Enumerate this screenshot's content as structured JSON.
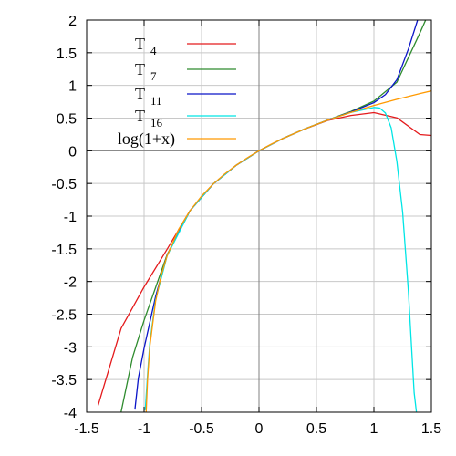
{
  "chart_data": {
    "type": "line",
    "title": "",
    "xlabel": "",
    "ylabel": "",
    "xlim": [
      -1.5,
      1.5
    ],
    "ylim": [
      -4,
      2
    ],
    "grid": true,
    "legend_position": "top-left",
    "x_ticks": [
      "-1.5",
      "-1",
      "-0.5",
      "0",
      "0.5",
      "1",
      "1.5"
    ],
    "y_ticks": [
      "2",
      "1.5",
      "1",
      "0.5",
      "0",
      "-0.5",
      "-1",
      "-1.5",
      "-2",
      "-2.5",
      "-3",
      "-3.5",
      "-4"
    ],
    "series": [
      {
        "name": "T 4",
        "legend_main": "T",
        "legend_sub": "4",
        "color": "#e41a1c",
        "x": [
          -1.4,
          -1.2,
          -1.0,
          -0.8,
          -0.6,
          -0.4,
          -0.2,
          0.0,
          0.2,
          0.4,
          0.6,
          0.8,
          1.0,
          1.2,
          1.4,
          1.5
        ],
        "y": [
          -3.895,
          -2.717,
          -2.083,
          -1.507,
          -0.9144,
          -0.5104,
          -0.2231,
          0.0,
          0.1823,
          0.3349,
          0.4644,
          0.5397,
          0.5833,
          0.504,
          0.2485,
          0.2344
        ]
      },
      {
        "name": "T 7",
        "legend_main": "T",
        "legend_sub": "7",
        "color": "#2e8b2e",
        "x": [
          -1.2,
          -1.1,
          -1.0,
          -0.8,
          -0.6,
          -0.4,
          -0.2,
          0.0,
          0.2,
          0.4,
          0.6,
          0.8,
          1.0,
          1.2,
          1.4,
          1.45
        ],
        "y": [
          -3.995,
          -3.158,
          -2.593,
          -1.591,
          -0.915,
          -0.5107,
          -0.2231,
          0.0,
          0.1823,
          0.3365,
          0.4728,
          0.6016,
          0.7595,
          1.0497,
          1.802,
          2.0
        ]
      },
      {
        "name": "T 11",
        "legend_main": "T",
        "legend_sub": "11",
        "color": "#0a14c8",
        "x": [
          -1.08,
          -1.05,
          -1.0,
          -0.9,
          -0.8,
          -0.6,
          -0.4,
          -0.2,
          0.0,
          0.2,
          0.4,
          0.6,
          0.8,
          1.0,
          1.1,
          1.2,
          1.3,
          1.38
        ],
        "y": [
          -3.96,
          -3.48,
          -3.02,
          -2.23,
          -1.6,
          -0.916,
          -0.5108,
          -0.2231,
          0.0,
          0.1823,
          0.3365,
          0.47,
          0.5936,
          0.7365,
          0.8595,
          1.0878,
          1.556,
          2.0
        ]
      },
      {
        "name": "T 16",
        "legend_main": "T",
        "legend_sub": "16",
        "color": "#00e5e5",
        "x": [
          -0.99,
          -0.97,
          -0.95,
          -0.9,
          -0.8,
          -0.6,
          -0.4,
          -0.2,
          0.0,
          0.2,
          0.4,
          0.6,
          0.8,
          1.0,
          1.05,
          1.1,
          1.15,
          1.2,
          1.25,
          1.3,
          1.35,
          1.37
        ],
        "y": [
          -3.97,
          -3.43,
          -2.94,
          -2.28,
          -1.608,
          -0.9163,
          -0.5108,
          -0.2231,
          0.0,
          0.1823,
          0.3365,
          0.47,
          0.5878,
          0.6628,
          0.6545,
          0.5782,
          0.3542,
          -0.1649,
          -0.94,
          -2.15,
          -3.7,
          -4.0
        ]
      },
      {
        "name": "log(1+x)",
        "legend_main": "log(1+x)",
        "legend_sub": "",
        "color": "#ff9900",
        "x": [
          -0.982,
          -0.97,
          -0.95,
          -0.9,
          -0.85,
          -0.8,
          -0.7,
          -0.6,
          -0.5,
          -0.4,
          -0.3,
          -0.2,
          -0.1,
          0.0,
          0.1,
          0.2,
          0.4,
          0.6,
          0.8,
          1.0,
          1.2,
          1.4,
          1.5
        ],
        "y": [
          -4.0,
          -3.507,
          -2.996,
          -2.303,
          -1.897,
          -1.609,
          -1.204,
          -0.9163,
          -0.6931,
          -0.5108,
          -0.3567,
          -0.2231,
          -0.1054,
          0.0,
          0.0953,
          0.1823,
          0.3365,
          0.47,
          0.5878,
          0.6931,
          0.7885,
          0.8755,
          0.9163
        ]
      }
    ]
  }
}
